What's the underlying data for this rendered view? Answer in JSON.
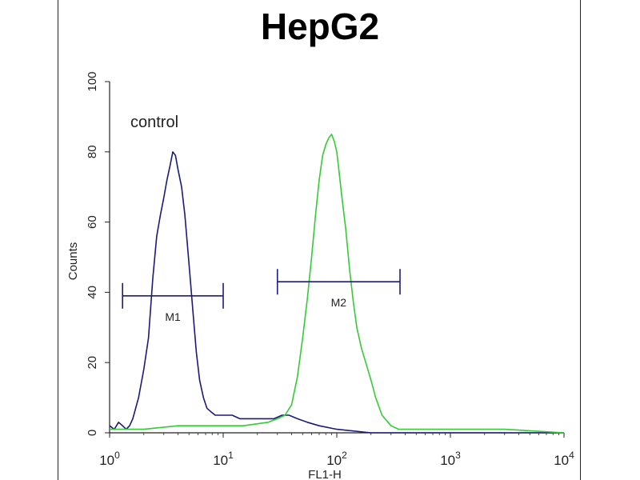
{
  "chart_data": {
    "type": "line",
    "title": "HepG2",
    "xlabel": "FL1-H",
    "ylabel": "Counts",
    "x_scale": "log",
    "xlim": [
      1,
      10000
    ],
    "ylim": [
      0,
      100
    ],
    "x_ticks": [
      {
        "value": 1,
        "base": "10",
        "exp": "0"
      },
      {
        "value": 10,
        "base": "10",
        "exp": "1"
      },
      {
        "value": 100,
        "base": "10",
        "exp": "2"
      },
      {
        "value": 1000,
        "base": "10",
        "exp": "3"
      },
      {
        "value": 10000,
        "base": "10",
        "exp": "4"
      }
    ],
    "y_ticks": [
      "0",
      "20",
      "40",
      "60",
      "80",
      "100"
    ],
    "grid": false,
    "annotations": [
      {
        "text": "control",
        "x": 1.5,
        "y": 87
      }
    ],
    "gates": [
      {
        "label": "M1",
        "x_start": 1.3,
        "x_end": 10,
        "y": 39,
        "color": "#1b1b80"
      },
      {
        "label": "M2",
        "x_start": 30,
        "x_end": 360,
        "y": 43,
        "color": "#1b1b80"
      }
    ],
    "series": [
      {
        "color": "#1a1a7a",
        "x": [
          1,
          1.1,
          1.2,
          1.3,
          1.4,
          1.5,
          1.6,
          1.8,
          2.0,
          2.2,
          2.4,
          2.6,
          2.8,
          3.0,
          3.2,
          3.4,
          3.6,
          3.8,
          4.0,
          4.3,
          4.6,
          5.0,
          5.4,
          5.8,
          6.2,
          6.7,
          7.2,
          7.8,
          8.5,
          9.3,
          10,
          12,
          14,
          17,
          20,
          24,
          28,
          33,
          38,
          45,
          55,
          70,
          100,
          200,
          1000,
          10000
        ],
        "y": [
          2,
          1,
          3,
          2,
          1,
          2,
          4,
          10,
          18,
          27,
          44,
          56,
          62,
          67,
          72,
          76,
          80,
          79,
          75,
          70,
          62,
          48,
          35,
          23,
          15,
          10,
          7,
          6,
          5,
          5,
          5,
          5,
          4,
          4,
          4,
          4,
          4,
          5,
          5,
          4,
          3,
          2,
          1,
          0,
          0,
          0
        ]
      },
      {
        "color": "#33cc33",
        "x": [
          1,
          2,
          4,
          8,
          15,
          25,
          30,
          35,
          40,
          45,
          50,
          55,
          60,
          65,
          70,
          75,
          80,
          85,
          90,
          95,
          100,
          105,
          110,
          120,
          130,
          140,
          150,
          165,
          180,
          200,
          220,
          250,
          300,
          350,
          500,
          1000,
          3000,
          10000
        ],
        "y": [
          1,
          1,
          2,
          2,
          2,
          3,
          4,
          5,
          8,
          16,
          27,
          38,
          50,
          62,
          72,
          79,
          82,
          84,
          85,
          83,
          80,
          74,
          68,
          58,
          46,
          37,
          30,
          24,
          20,
          15,
          10,
          5,
          2,
          1,
          1,
          1,
          1,
          0
        ]
      }
    ]
  }
}
